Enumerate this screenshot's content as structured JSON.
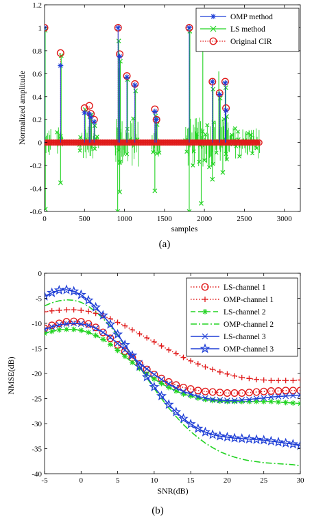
{
  "chart_data": [
    {
      "type": "line",
      "xlabel": "samples",
      "ylabel": "Normalized amplitude",
      "xlim": [
        0,
        3200
      ],
      "ylim": [
        -0.6,
        1.2
      ],
      "xticks": [
        "0",
        "500",
        "1000",
        "1500",
        "2000",
        "2500",
        "3000"
      ],
      "yticks": [
        "1.2",
        "1",
        "0.8",
        "0.6",
        "0.4",
        "0.2",
        "0",
        "-0.2",
        "-0.4",
        "-0.6"
      ],
      "caption": "(a)",
      "grid": false,
      "legend_position": "top-right",
      "series": [
        {
          "name": "OMP method",
          "color": "#1f3fd6",
          "marker": "asterisk",
          "taps_x": [
            0,
            200,
            500,
            560,
            580,
            620,
            920,
            940,
            1030,
            1130,
            1380,
            1400,
            1810,
            2100,
            2190,
            2260,
            2270
          ],
          "taps_y": [
            1.0,
            0.67,
            0.26,
            0.25,
            0.22,
            0.18,
            1.0,
            0.75,
            0.57,
            0.5,
            0.27,
            0.2,
            1.0,
            0.53,
            0.42,
            0.52,
            0.28
          ]
        },
        {
          "name": "LS method",
          "color": "#22d322",
          "marker": "x",
          "samples_x_range": [
            0,
            2700
          ],
          "amplitude_range": [
            -0.6,
            1.0
          ]
        },
        {
          "name": "Original CIR",
          "color": "#e01a1a",
          "marker": "circle",
          "taps_x": [
            0,
            200,
            500,
            560,
            580,
            620,
            920,
            940,
            1030,
            1130,
            1380,
            1400,
            1810,
            2100,
            2190,
            2260,
            2270
          ],
          "taps_y": [
            1.0,
            0.78,
            0.3,
            0.32,
            0.25,
            0.2,
            1.0,
            0.77,
            0.58,
            0.51,
            0.29,
            0.2,
            1.0,
            0.53,
            0.43,
            0.53,
            0.3
          ]
        }
      ]
    },
    {
      "type": "line",
      "xlabel": "SNR(dB)",
      "ylabel": "NMSE(dB)",
      "xlim": [
        -5,
        30
      ],
      "ylim": [
        -40,
        0
      ],
      "xticks": [
        "-5",
        "0",
        "5",
        "10",
        "15",
        "20",
        "25",
        "30"
      ],
      "yticks": [
        "0",
        "-5",
        "-10",
        "-15",
        "-20",
        "-25",
        "-30",
        "-35",
        "-40"
      ],
      "caption": "(b)",
      "grid": false,
      "legend_position": "top-right",
      "x": [
        -5,
        -4,
        -3,
        -2,
        -1,
        0,
        1,
        2,
        3,
        4,
        5,
        6,
        7,
        8,
        9,
        10,
        11,
        12,
        13,
        14,
        15,
        16,
        17,
        18,
        19,
        20,
        21,
        22,
        23,
        24,
        25,
        26,
        27,
        28,
        29,
        30
      ],
      "series": [
        {
          "name": "LS-channel 1",
          "color": "#e01a1a",
          "line": "dotted",
          "marker": "circle",
          "values": [
            -11,
            -10.4,
            -10,
            -9.7,
            -9.6,
            -9.7,
            -10.1,
            -10.8,
            -11.8,
            -13,
            -14.3,
            -15.6,
            -16.9,
            -18.1,
            -19.2,
            -20.2,
            -21,
            -21.7,
            -22.3,
            -22.8,
            -23.1,
            -23.4,
            -23.6,
            -23.7,
            -23.8,
            -23.9,
            -23.9,
            -23.9,
            -23.8,
            -23.7,
            -23.6,
            -23.5,
            -23.5,
            -23.4,
            -23.4,
            -23.4
          ]
        },
        {
          "name": "OMP-channel 1",
          "color": "#e01a1a",
          "line": "dotted",
          "marker": "plus",
          "values": [
            -7.7,
            -7.5,
            -7.4,
            -7.3,
            -7.3,
            -7.4,
            -7.6,
            -8,
            -8.5,
            -9.1,
            -9.8,
            -10.5,
            -11.3,
            -12.1,
            -12.9,
            -13.7,
            -14.5,
            -15.3,
            -16,
            -16.8,
            -17.5,
            -18.1,
            -18.7,
            -19.2,
            -19.7,
            -20.1,
            -20.5,
            -20.8,
            -21,
            -21.2,
            -21.3,
            -21.4,
            -21.4,
            -21.4,
            -21.4,
            -21.3
          ]
        },
        {
          "name": "LS-channel 2",
          "color": "#22d322",
          "line": "dashed",
          "marker": "asterisk",
          "values": [
            -12,
            -11.6,
            -11.3,
            -11.2,
            -11.2,
            -11.4,
            -11.8,
            -12.4,
            -13.2,
            -14.2,
            -15.4,
            -16.6,
            -17.8,
            -19,
            -20.1,
            -21.1,
            -22,
            -22.8,
            -23.5,
            -24.1,
            -24.5,
            -24.9,
            -25.2,
            -25.4,
            -25.5,
            -25.6,
            -25.6,
            -25.6,
            -25.6,
            -25.6,
            -25.6,
            -25.6,
            -25.7,
            -25.8,
            -25.9,
            -26
          ]
        },
        {
          "name": "OMP-channel 2",
          "color": "#22d322",
          "line": "dashdot",
          "marker": "none",
          "values": [
            -6.5,
            -5.9,
            -5.5,
            -5.3,
            -5.4,
            -5.8,
            -6.6,
            -7.7,
            -9,
            -10.6,
            -12.4,
            -14.4,
            -16.5,
            -18.7,
            -20.9,
            -23,
            -25,
            -26.9,
            -28.6,
            -30.2,
            -31.6,
            -32.8,
            -33.9,
            -34.8,
            -35.6,
            -36.2,
            -36.7,
            -37.1,
            -37.4,
            -37.6,
            -37.8,
            -37.9,
            -38,
            -38.1,
            -38.2,
            -38.4
          ]
        },
        {
          "name": "LS-channel 3",
          "color": "#1f3fd6",
          "line": "solid",
          "marker": "x",
          "values": [
            -11.2,
            -10.7,
            -10.3,
            -10.1,
            -10,
            -10.1,
            -10.4,
            -11,
            -11.8,
            -12.8,
            -14,
            -15.3,
            -16.6,
            -17.9,
            -19.1,
            -20.2,
            -21.2,
            -22.1,
            -22.9,
            -23.6,
            -24.1,
            -24.6,
            -24.9,
            -25.2,
            -25.3,
            -25.4,
            -25.4,
            -25.3,
            -25.2,
            -25,
            -24.9,
            -24.7,
            -24.6,
            -24.5,
            -24.4,
            -24.3
          ]
        },
        {
          "name": "OMP-channel 3",
          "color": "#1f3fd6",
          "line": "solid",
          "marker": "pentagram",
          "values": [
            -4.6,
            -3.9,
            -3.4,
            -3.3,
            -3.6,
            -4.3,
            -5.4,
            -6.8,
            -8.4,
            -10.2,
            -12.2,
            -14.3,
            -16.4,
            -18.6,
            -20.7,
            -22.7,
            -24.5,
            -26.2,
            -27.7,
            -29,
            -30.1,
            -31,
            -31.7,
            -32.2,
            -32.5,
            -32.7,
            -32.9,
            -33,
            -33.1,
            -33.2,
            -33.3,
            -33.5,
            -33.7,
            -33.9,
            -34.1,
            -34.4
          ]
        }
      ]
    }
  ]
}
